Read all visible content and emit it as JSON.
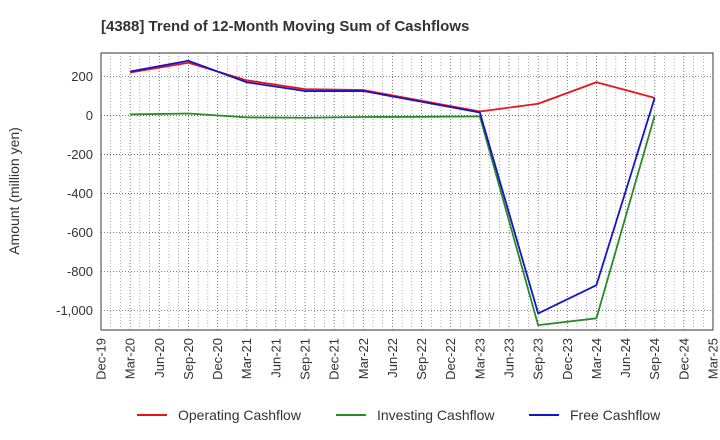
{
  "chart_data": {
    "type": "line",
    "title": "[4388]  Trend of 12-Month Moving Sum of Cashflows",
    "xlabel": "",
    "ylabel": "Amount (million yen)",
    "ylim": [
      -1100,
      320
    ],
    "yticks": [
      200,
      0,
      -200,
      -400,
      -600,
      -800,
      -1000
    ],
    "ytick_labels": [
      "200",
      "0",
      "-200",
      "-400",
      "-600",
      "-800",
      "-1,000"
    ],
    "categories": [
      "Dec-19",
      "Mar-20",
      "Jun-20",
      "Sep-20",
      "Dec-20",
      "Mar-21",
      "Jun-21",
      "Sep-21",
      "Dec-21",
      "Mar-22",
      "Jun-22",
      "Sep-22",
      "Dec-22",
      "Mar-23",
      "Jun-23",
      "Sep-23",
      "Dec-23",
      "Mar-24",
      "Jun-24",
      "Sep-24",
      "Dec-24",
      "Mar-25"
    ],
    "grid": true,
    "legend_position": "bottom",
    "series": [
      {
        "name": "Operating Cashflow",
        "color": "#e8141a",
        "values": [
          null,
          220,
          null,
          270,
          null,
          180,
          null,
          135,
          null,
          130,
          null,
          75,
          null,
          20,
          null,
          60,
          null,
          170,
          null,
          90,
          null,
          null
        ]
      },
      {
        "name": "Investing Cashflow",
        "color": "#2a8a2a",
        "values": [
          null,
          5,
          null,
          10,
          null,
          -10,
          null,
          -12,
          null,
          -8,
          null,
          -7,
          null,
          -5,
          null,
          -1075,
          null,
          -1040,
          null,
          0,
          null,
          null
        ]
      },
      {
        "name": "Free Cashflow",
        "color": "#1414c8",
        "values": [
          null,
          225,
          null,
          280,
          null,
          170,
          null,
          125,
          null,
          125,
          null,
          70,
          null,
          15,
          null,
          -1015,
          null,
          -870,
          null,
          90,
          null,
          null
        ]
      }
    ]
  }
}
